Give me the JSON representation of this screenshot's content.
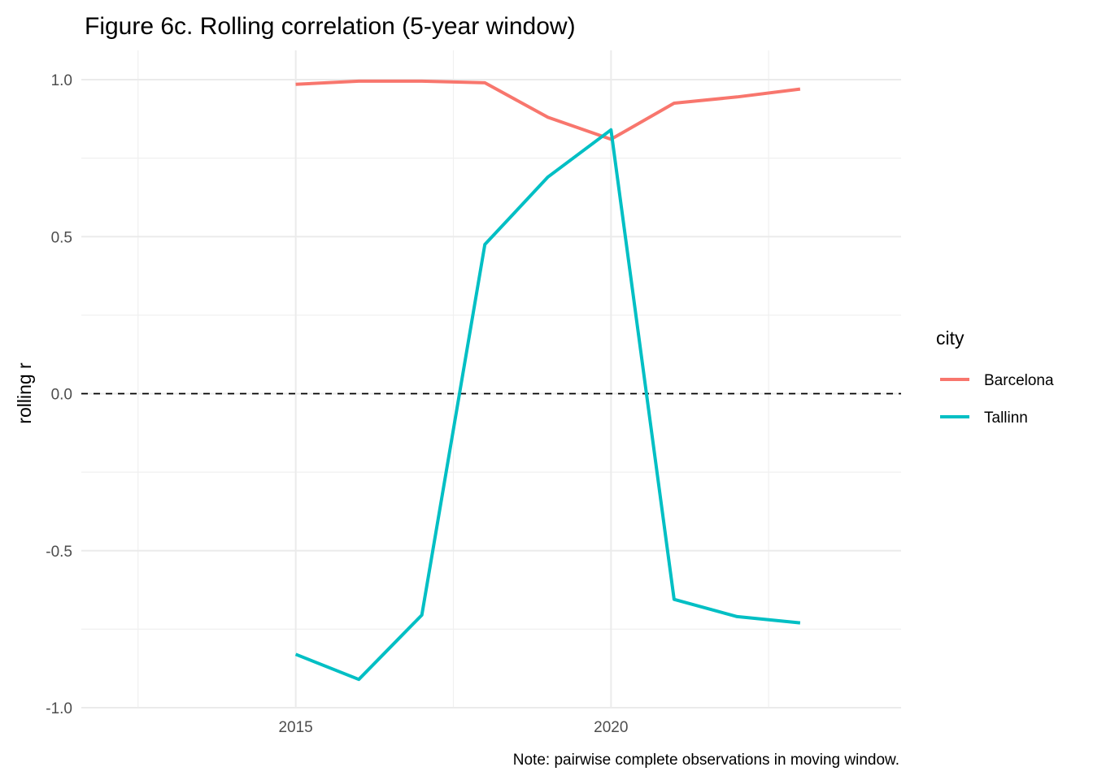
{
  "chart_data": {
    "type": "line",
    "title": "Figure 6c. Rolling correlation (5-year window)",
    "xlabel": "",
    "ylabel": "rolling r",
    "caption": "Note: pairwise complete observations in moving window.",
    "xlim": [
      2011.6,
      2024.6
    ],
    "ylim": [
      -1.0,
      1.0
    ],
    "x_ticks": [
      2015,
      2020
    ],
    "x_tick_labels": [
      "2015",
      "2020"
    ],
    "y_ticks": [
      1.0,
      0.5,
      0.0,
      -0.5,
      -1.0
    ],
    "y_tick_labels": [
      "1.0",
      "0.5",
      "0.0",
      "-0.5",
      "-1.0"
    ],
    "grid": true,
    "reference_line": {
      "y": 0,
      "style": "dashed"
    },
    "legend": {
      "title": "city",
      "position": "right"
    },
    "x": [
      2015,
      2016,
      2017,
      2018,
      2019,
      2020,
      2021,
      2022,
      2023
    ],
    "series": [
      {
        "name": "Barcelona",
        "color": "#F8766D",
        "values": [
          0.985,
          0.995,
          0.995,
          0.99,
          0.88,
          0.81,
          0.925,
          0.945,
          0.97
        ]
      },
      {
        "name": "Tallinn",
        "color": "#00BFC4",
        "values": [
          -0.83,
          -0.91,
          -0.705,
          0.475,
          0.69,
          0.84,
          -0.655,
          -0.71,
          -0.73
        ]
      }
    ]
  }
}
